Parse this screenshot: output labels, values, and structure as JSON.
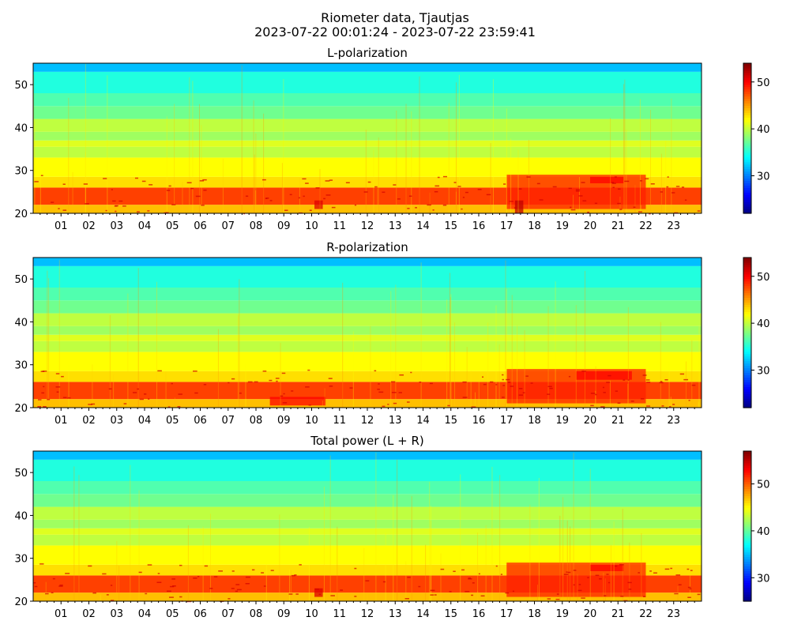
{
  "figure": {
    "title": "Riometer data, Tjautjas",
    "subtitle": "2023-07-22 00:01:24 - 2023-07-22 23:59:41"
  },
  "chart_data": [
    {
      "type": "heatmap",
      "title": "L-polarization",
      "x_tick_labels": [
        "01",
        "02",
        "03",
        "04",
        "05",
        "06",
        "07",
        "08",
        "09",
        "10",
        "11",
        "12",
        "13",
        "14",
        "15",
        "16",
        "17",
        "18",
        "19",
        "20",
        "21",
        "22",
        "23"
      ],
      "xlim": [
        0,
        24
      ],
      "ylim": [
        20,
        55
      ],
      "y_ticks": [
        20,
        30,
        40,
        50
      ],
      "colorbar": {
        "colormap": "jet",
        "range": [
          22,
          54
        ],
        "ticks": [
          30,
          40,
          50
        ]
      },
      "bands": [
        {
          "y": [
            20,
            22
          ],
          "value": 44
        },
        {
          "y": [
            22,
            26
          ],
          "value": 48
        },
        {
          "y": [
            26,
            28.5
          ],
          "value": 43
        },
        {
          "y": [
            28.5,
            33
          ],
          "value": 42
        },
        {
          "y": [
            33,
            35.5
          ],
          "value": 40
        },
        {
          "y": [
            35.5,
            37
          ],
          "value": 41
        },
        {
          "y": [
            37,
            39
          ],
          "value": 39
        },
        {
          "y": [
            39,
            42
          ],
          "value": 40
        },
        {
          "y": [
            42,
            45
          ],
          "value": 37.5
        },
        {
          "y": [
            45,
            48
          ],
          "value": 36.5
        },
        {
          "y": [
            48,
            53
          ],
          "value": 35
        },
        {
          "y": [
            53,
            55
          ],
          "value": 32
        }
      ],
      "features": [
        {
          "x": [
            17,
            22
          ],
          "y": [
            21,
            29
          ],
          "value": 49
        },
        {
          "x": [
            17.3,
            17.6
          ],
          "y": [
            20,
            23
          ],
          "value": 52
        },
        {
          "x": [
            10.1,
            10.4
          ],
          "y": [
            21,
            23
          ],
          "value": 51
        },
        {
          "x": [
            20,
            21.2
          ],
          "y": [
            27,
            28.5
          ],
          "value": 50
        }
      ]
    },
    {
      "type": "heatmap",
      "title": "R-polarization",
      "x_tick_labels": [
        "01",
        "02",
        "03",
        "04",
        "05",
        "06",
        "07",
        "08",
        "09",
        "10",
        "11",
        "12",
        "13",
        "14",
        "15",
        "16",
        "17",
        "18",
        "19",
        "20",
        "21",
        "22",
        "23"
      ],
      "xlim": [
        0,
        24
      ],
      "ylim": [
        20,
        55
      ],
      "y_ticks": [
        20,
        30,
        40,
        50
      ],
      "colorbar": {
        "colormap": "jet",
        "range": [
          22,
          54
        ],
        "ticks": [
          30,
          40,
          50
        ]
      },
      "bands": [
        {
          "y": [
            20,
            22
          ],
          "value": 44
        },
        {
          "y": [
            22,
            26
          ],
          "value": 48
        },
        {
          "y": [
            26,
            28.5
          ],
          "value": 43
        },
        {
          "y": [
            28.5,
            33
          ],
          "value": 42
        },
        {
          "y": [
            33,
            35.5
          ],
          "value": 40
        },
        {
          "y": [
            35.5,
            37
          ],
          "value": 41
        },
        {
          "y": [
            37,
            39
          ],
          "value": 39
        },
        {
          "y": [
            39,
            42
          ],
          "value": 40
        },
        {
          "y": [
            42,
            45
          ],
          "value": 37.5
        },
        {
          "y": [
            45,
            48
          ],
          "value": 36.5
        },
        {
          "y": [
            48,
            53
          ],
          "value": 35
        },
        {
          "y": [
            53,
            55
          ],
          "value": 32
        }
      ],
      "features": [
        {
          "x": [
            17,
            22
          ],
          "y": [
            21,
            29
          ],
          "value": 49
        },
        {
          "x": [
            8.5,
            10.5
          ],
          "y": [
            20.5,
            22.5
          ],
          "value": 50
        },
        {
          "x": [
            19.5,
            21.5
          ],
          "y": [
            26.5,
            28.5
          ],
          "value": 50
        }
      ]
    },
    {
      "type": "heatmap",
      "title": "Total power (L + R)",
      "x_tick_labels": [
        "01",
        "02",
        "03",
        "04",
        "05",
        "06",
        "07",
        "08",
        "09",
        "10",
        "11",
        "12",
        "13",
        "14",
        "15",
        "16",
        "17",
        "18",
        "19",
        "20",
        "21",
        "22",
        "23"
      ],
      "xlim": [
        0,
        24
      ],
      "ylim": [
        20,
        55
      ],
      "y_ticks": [
        20,
        30,
        40,
        50
      ],
      "colorbar": {
        "colormap": "jet",
        "range": [
          25,
          57
        ],
        "ticks": [
          30,
          40,
          50
        ]
      },
      "bands": [
        {
          "y": [
            20,
            22
          ],
          "value": 47
        },
        {
          "y": [
            22,
            26
          ],
          "value": 51
        },
        {
          "y": [
            26,
            28.5
          ],
          "value": 46
        },
        {
          "y": [
            28.5,
            33
          ],
          "value": 45
        },
        {
          "y": [
            33,
            35.5
          ],
          "value": 43
        },
        {
          "y": [
            35.5,
            37
          ],
          "value": 44
        },
        {
          "y": [
            37,
            39
          ],
          "value": 42
        },
        {
          "y": [
            39,
            42
          ],
          "value": 43
        },
        {
          "y": [
            42,
            45
          ],
          "value": 40.5
        },
        {
          "y": [
            45,
            48
          ],
          "value": 39.5
        },
        {
          "y": [
            48,
            53
          ],
          "value": 38
        },
        {
          "y": [
            53,
            55
          ],
          "value": 35
        }
      ],
      "features": [
        {
          "x": [
            17,
            22
          ],
          "y": [
            21,
            29
          ],
          "value": 52
        },
        {
          "x": [
            20,
            21.2
          ],
          "y": [
            27,
            28.5
          ],
          "value": 53
        },
        {
          "x": [
            10.1,
            10.4
          ],
          "y": [
            21,
            23
          ],
          "value": 54
        }
      ]
    }
  ]
}
